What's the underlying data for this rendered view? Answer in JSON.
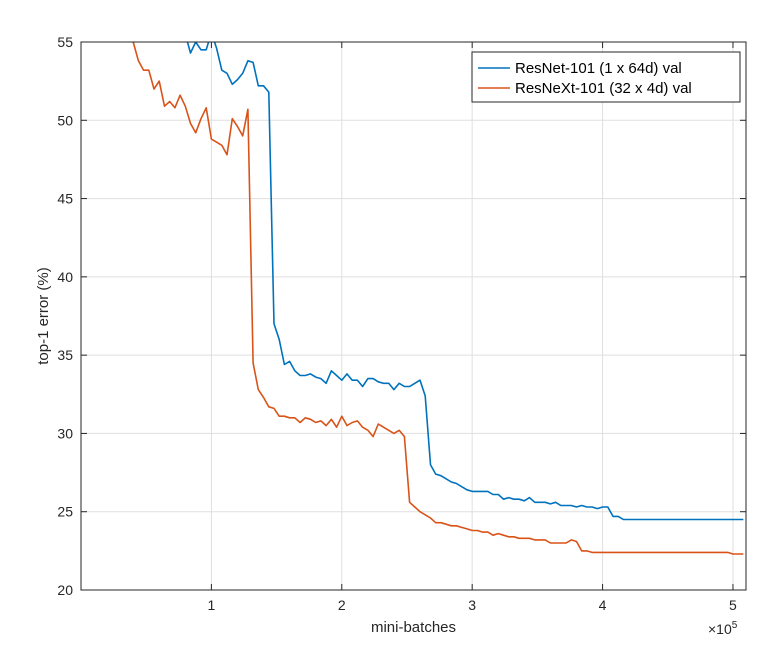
{
  "chart_data": {
    "type": "line",
    "xlabel": "mini-batches",
    "ylabel": "top-1 error (%)",
    "x_multiplier_label": "×10",
    "x_multiplier_exponent": "5",
    "xlim": [
      0,
      5.1
    ],
    "ylim": [
      20,
      55
    ],
    "xticks": [
      1,
      2,
      3,
      4,
      5
    ],
    "yticks": [
      20,
      25,
      30,
      35,
      40,
      45,
      50,
      55
    ],
    "grid": true,
    "legend_position": "top-right",
    "series": [
      {
        "name": "ResNet-101 (1 x 64d) val",
        "color": "#0072BD",
        "x": [
          0.8,
          0.84,
          0.88,
          0.92,
          0.96,
          1.0,
          1.04,
          1.08,
          1.12,
          1.16,
          1.2,
          1.24,
          1.28,
          1.32,
          1.36,
          1.4,
          1.44,
          1.48,
          1.52,
          1.56,
          1.6,
          1.64,
          1.68,
          1.72,
          1.76,
          1.8,
          1.84,
          1.88,
          1.92,
          1.96,
          2.0,
          2.04,
          2.08,
          2.12,
          2.16,
          2.2,
          2.24,
          2.28,
          2.32,
          2.36,
          2.4,
          2.44,
          2.48,
          2.52,
          2.56,
          2.6,
          2.64,
          2.68,
          2.72,
          2.76,
          2.8,
          2.84,
          2.88,
          2.92,
          2.96,
          3.0,
          3.04,
          3.08,
          3.12,
          3.16,
          3.2,
          3.24,
          3.28,
          3.32,
          3.36,
          3.4,
          3.44,
          3.48,
          3.52,
          3.56,
          3.6,
          3.64,
          3.68,
          3.72,
          3.76,
          3.8,
          3.84,
          3.88,
          3.92,
          3.96,
          4.0,
          4.04,
          4.08,
          4.12,
          4.16,
          4.2,
          4.24,
          4.28,
          4.32,
          4.36,
          4.4,
          4.44,
          4.48,
          4.52,
          4.56,
          4.6,
          4.64,
          4.68,
          4.72,
          4.76,
          4.8,
          4.84,
          4.88,
          4.92,
          4.96,
          5.0,
          5.04,
          5.08
        ],
        "y": [
          55.5,
          54.3,
          55.0,
          54.5,
          54.5,
          55.6,
          54.6,
          53.2,
          53.0,
          52.3,
          52.6,
          53.0,
          53.8,
          53.7,
          52.2,
          52.2,
          51.8,
          37.0,
          36.0,
          34.4,
          34.6,
          34.0,
          33.7,
          33.7,
          33.8,
          33.6,
          33.5,
          33.2,
          34.0,
          33.7,
          33.4,
          33.8,
          33.4,
          33.4,
          33.0,
          33.5,
          33.5,
          33.3,
          33.2,
          33.2,
          32.8,
          33.2,
          33.0,
          33.0,
          33.2,
          33.4,
          32.4,
          28.0,
          27.4,
          27.3,
          27.1,
          26.9,
          26.8,
          26.6,
          26.4,
          26.3,
          26.3,
          26.3,
          26.3,
          26.1,
          26.1,
          25.8,
          25.9,
          25.8,
          25.8,
          25.7,
          25.9,
          25.6,
          25.6,
          25.6,
          25.5,
          25.6,
          25.4,
          25.4,
          25.4,
          25.3,
          25.4,
          25.3,
          25.3,
          25.2,
          25.3,
          25.3,
          24.7,
          24.7,
          24.5,
          24.5,
          24.5,
          24.5,
          24.5,
          24.5,
          24.5,
          24.5,
          24.5,
          24.5,
          24.5,
          24.5,
          24.5,
          24.5,
          24.5,
          24.5,
          24.5,
          24.5,
          24.5,
          24.5,
          24.5,
          24.5,
          24.5,
          24.5
        ]
      },
      {
        "name": "ResNeXt-101 (32 x 4d) val",
        "color": "#D95319",
        "x": [
          0.4,
          0.44,
          0.48,
          0.52,
          0.56,
          0.6,
          0.64,
          0.68,
          0.72,
          0.76,
          0.8,
          0.84,
          0.88,
          0.92,
          0.96,
          1.0,
          1.04,
          1.08,
          1.12,
          1.16,
          1.2,
          1.24,
          1.28,
          1.32,
          1.36,
          1.4,
          1.44,
          1.48,
          1.52,
          1.56,
          1.6,
          1.64,
          1.68,
          1.72,
          1.76,
          1.8,
          1.84,
          1.88,
          1.92,
          1.96,
          2.0,
          2.04,
          2.08,
          2.12,
          2.16,
          2.2,
          2.24,
          2.28,
          2.32,
          2.36,
          2.4,
          2.44,
          2.48,
          2.52,
          2.56,
          2.6,
          2.64,
          2.68,
          2.72,
          2.76,
          2.8,
          2.84,
          2.88,
          2.92,
          2.96,
          3.0,
          3.04,
          3.08,
          3.12,
          3.16,
          3.2,
          3.24,
          3.28,
          3.32,
          3.36,
          3.4,
          3.44,
          3.48,
          3.52,
          3.56,
          3.6,
          3.64,
          3.68,
          3.72,
          3.76,
          3.8,
          3.84,
          3.88,
          3.92,
          3.96,
          4.0,
          4.04,
          4.08,
          4.12,
          4.16,
          4.2,
          4.24,
          4.28,
          4.32,
          4.36,
          4.4,
          4.44,
          4.48,
          4.52,
          4.56,
          4.6,
          4.64,
          4.68,
          4.72,
          4.76,
          4.8,
          4.84,
          4.88,
          4.92,
          4.96,
          5.0,
          5.04,
          5.08
        ],
        "y": [
          55.0,
          53.8,
          53.2,
          53.2,
          52.0,
          52.5,
          50.9,
          51.2,
          50.8,
          51.6,
          50.9,
          49.8,
          49.2,
          50.1,
          50.8,
          48.8,
          48.6,
          48.4,
          47.8,
          50.1,
          49.6,
          49.0,
          50.7,
          34.5,
          32.8,
          32.3,
          31.7,
          31.6,
          31.1,
          31.1,
          31.0,
          31.0,
          30.7,
          31.0,
          30.9,
          30.7,
          30.8,
          30.5,
          30.9,
          30.4,
          31.1,
          30.5,
          30.7,
          30.8,
          30.4,
          30.2,
          29.8,
          30.6,
          30.4,
          30.2,
          30.0,
          30.2,
          29.8,
          25.6,
          25.3,
          25.0,
          24.8,
          24.6,
          24.3,
          24.3,
          24.2,
          24.1,
          24.1,
          24.0,
          23.9,
          23.8,
          23.8,
          23.7,
          23.7,
          23.5,
          23.6,
          23.5,
          23.4,
          23.4,
          23.3,
          23.3,
          23.3,
          23.2,
          23.2,
          23.2,
          23.0,
          23.0,
          23.0,
          23.0,
          23.2,
          23.1,
          22.5,
          22.5,
          22.4,
          22.4,
          22.4,
          22.4,
          22.4,
          22.4,
          22.4,
          22.4,
          22.4,
          22.4,
          22.4,
          22.4,
          22.4,
          22.4,
          22.4,
          22.4,
          22.4,
          22.4,
          22.4,
          22.4,
          22.4,
          22.4,
          22.4,
          22.4,
          22.4,
          22.4,
          22.4,
          22.3,
          22.3,
          22.3
        ]
      }
    ]
  }
}
